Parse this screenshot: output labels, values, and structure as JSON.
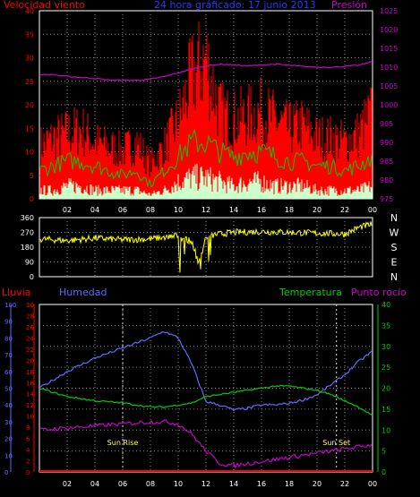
{
  "header": {
    "left_label": "Velocidad viento",
    "center_label": "24 hora gráficado: 17 junio 2013",
    "right_label": "Presión"
  },
  "wind_chart": {
    "ylim": [
      0,
      40
    ],
    "y_ticks": [
      "0",
      "5",
      "10",
      "15",
      "20",
      "25",
      "30",
      "35",
      "40"
    ],
    "pressure_lim": [
      975,
      1025
    ],
    "pressure_ticks": [
      "975",
      "980",
      "985",
      "990",
      "995",
      "1000",
      "1005",
      "1010",
      "1015",
      "1020",
      "1025"
    ]
  },
  "direction_chart": {
    "y_ticks": [
      "0",
      "90",
      "180",
      "270",
      "360"
    ],
    "compass": [
      "N",
      "W",
      "S",
      "E",
      "N"
    ]
  },
  "x_ticks": [
    "02",
    "04",
    "06",
    "08",
    "10",
    "12",
    "14",
    "16",
    "18",
    "20",
    "22",
    "00"
  ],
  "bottom_header": {
    "rain_label": "Lluvia",
    "humidity_label": "Humedad",
    "temperature_label": "Temperatura",
    "dew_label": "Punto rocío"
  },
  "bottom_chart": {
    "humidity_ticks": [
      "0",
      "10",
      "20",
      "30",
      "40",
      "50",
      "60",
      "70",
      "80",
      "90",
      "100"
    ],
    "rain_ticks": [
      "0",
      "2",
      "4",
      "6",
      "8",
      "10",
      "12",
      "14",
      "16",
      "18",
      "20",
      "22",
      "24",
      "26",
      "28",
      "30"
    ],
    "temp_ticks": [
      "0",
      "5",
      "10",
      "15",
      "20",
      "25",
      "30",
      "35",
      "40"
    ],
    "sunrise_label": "Sun Rise",
    "sunset_label": "Sun Set"
  },
  "colors": {
    "wind_gust": "#ff0000",
    "wind_avg": "#00cc00",
    "wind_min": "#ccffcc",
    "pressure": "#cc00cc",
    "direction": "#ffff00",
    "humidity": "#6666ff",
    "temperature": "#00cc00",
    "dew_point": "#cc00cc",
    "rain": "#ff0000",
    "axis_red": "#ff0000",
    "axis_magenta": "#cc00cc",
    "axis_blue": "#6666ff",
    "axis_green": "#00cc00"
  },
  "chart_data": [
    {
      "type": "area",
      "title": "24 hora gráficado: 17 junio 2013",
      "ylabel": "Velocidad viento",
      "y2label": "Presión",
      "x": [
        0,
        1,
        2,
        3,
        4,
        5,
        6,
        7,
        8,
        9,
        10,
        11,
        12,
        13,
        14,
        15,
        16,
        17,
        18,
        19,
        20,
        21,
        22,
        23,
        24
      ],
      "ylim": [
        0,
        40
      ],
      "y2lim": [
        975,
        1025
      ],
      "grid": true,
      "series": [
        {
          "values": [
            12,
            14,
            15,
            16,
            13,
            12,
            11,
            13,
            8,
            12,
            18,
            28,
            32,
            20,
            18,
            19,
            20,
            18,
            16,
            17,
            14,
            14,
            13,
            15,
            20
          ]
        },
        {
          "values": [
            6,
            7,
            8,
            8,
            7,
            6,
            5,
            6,
            3,
            6,
            9,
            12,
            12,
            10,
            9,
            10,
            10,
            9,
            8,
            8,
            7,
            7,
            6,
            7,
            9
          ]
        },
        {
          "values": [
            2,
            2,
            3,
            3,
            2,
            2,
            2,
            2,
            1,
            2,
            4,
            5,
            5,
            4,
            3,
            4,
            4,
            3,
            3,
            3,
            2,
            2,
            2,
            2,
            3
          ]
        },
        {
          "values": [
            1008,
            1008,
            1007.5,
            1007.3,
            1007,
            1006.6,
            1006.5,
            1006.5,
            1006.8,
            1007.5,
            1008.5,
            1009.5,
            1010.3,
            1010.8,
            1010.6,
            1010.3,
            1010.6,
            1010.8,
            1010.5,
            1010.2,
            1010,
            1010,
            1010.2,
            1010.5,
            1011.5
          ]
        }
      ]
    },
    {
      "type": "scatter",
      "x": [
        0,
        2,
        4,
        6,
        8,
        9,
        10,
        11,
        11.5,
        12,
        13,
        14,
        16,
        18,
        20,
        22,
        23,
        24
      ],
      "ylim": [
        0,
        360
      ],
      "series": [
        {
          "values": [
            230,
            220,
            235,
            225,
            230,
            240,
            250,
            210,
            80,
            245,
            260,
            270,
            275,
            270,
            265,
            260,
            300,
            320
          ]
        }
      ]
    },
    {
      "type": "line",
      "x": [
        0,
        2,
        4,
        6,
        8,
        9,
        10,
        11,
        12,
        13,
        14,
        15,
        16,
        17,
        18,
        19,
        20,
        21,
        22,
        23,
        24
      ],
      "ylim": [
        0,
        100
      ],
      "y2lim": [
        0,
        30
      ],
      "y3lim": [
        0,
        40
      ],
      "grid": true,
      "series": [
        {
          "values": [
            50,
            60,
            68,
            74,
            80,
            84,
            80,
            64,
            42,
            40,
            37,
            38,
            40,
            40,
            41,
            43,
            46,
            52,
            58,
            66,
            72
          ]
        },
        {
          "values": [
            0,
            0,
            0,
            0,
            0,
            0,
            0,
            0,
            0,
            0,
            0,
            0,
            0,
            0,
            0,
            0,
            0,
            0,
            0,
            0,
            0
          ]
        },
        {
          "values": [
            20,
            18,
            17,
            16.5,
            15.5,
            15.5,
            16,
            16.5,
            18,
            18.5,
            19,
            19.5,
            20,
            20.5,
            20.5,
            20,
            19.5,
            18.5,
            17,
            15.5,
            13.5
          ]
        },
        {
          "values": [
            10,
            10.5,
            11,
            11.5,
            12,
            12,
            11.5,
            9,
            5,
            2,
            1.5,
            2,
            2.5,
            3,
            3.5,
            4,
            4.5,
            5,
            5.5,
            6,
            6.5
          ]
        }
      ]
    }
  ]
}
